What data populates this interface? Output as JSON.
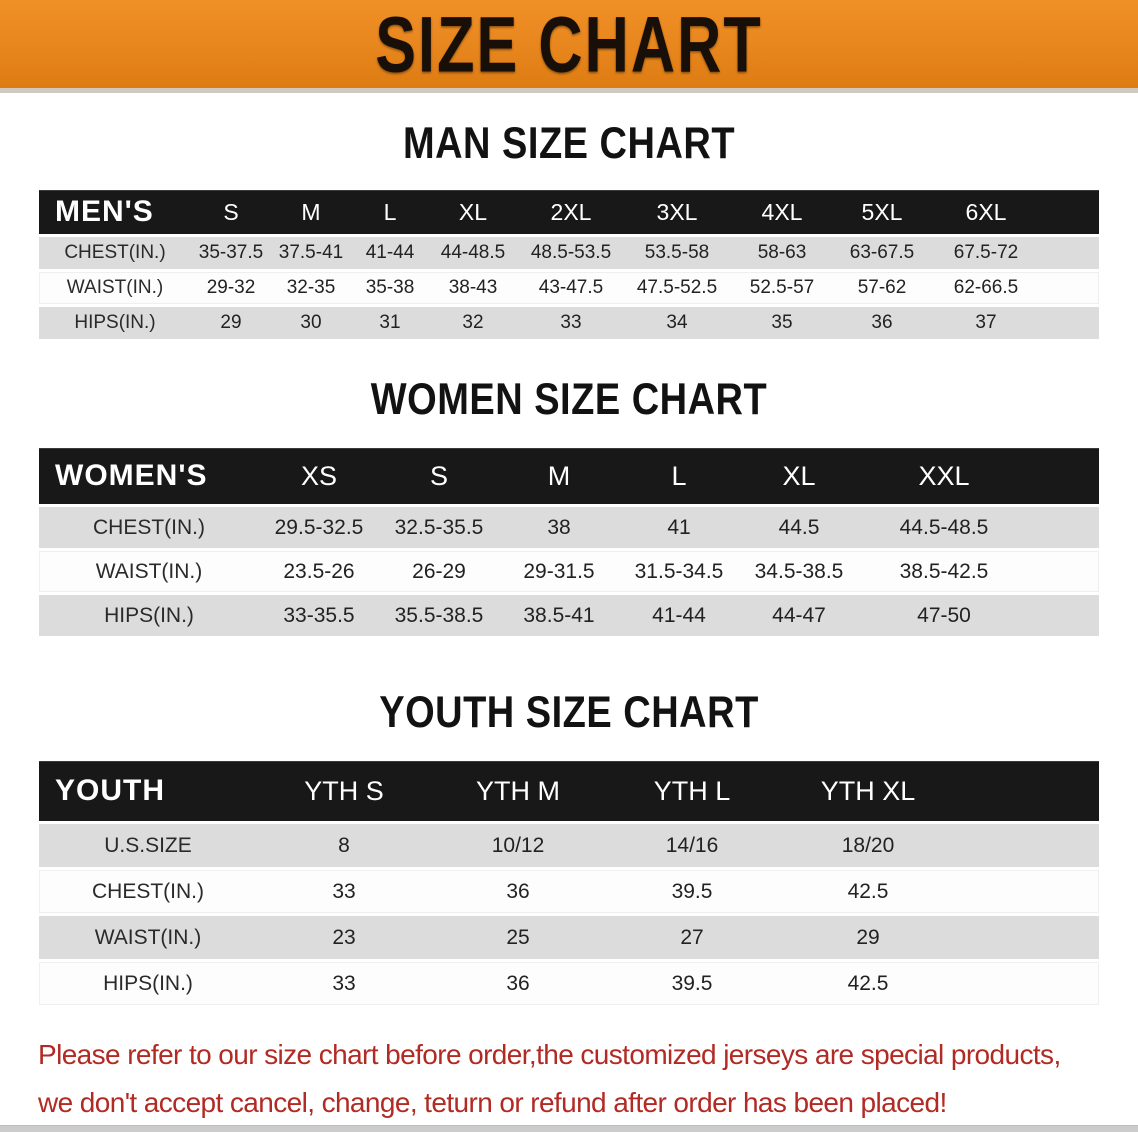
{
  "banner": {
    "title": "SIZE CHART",
    "bg_color": "#e8861e",
    "text_color": "#181008"
  },
  "sections": [
    {
      "heading": "MAN SIZE CHART",
      "table": {
        "label": "MEN'S",
        "sizes": [
          "S",
          "M",
          "L",
          "XL",
          "2XL",
          "3XL",
          "4XL",
          "5XL",
          "6XL"
        ],
        "rows": [
          {
            "label": "CHEST(IN.)",
            "values": [
              "35-37.5",
              "37.5-41",
              "41-44",
              "44-48.5",
              "48.5-53.5",
              "53.5-58",
              "58-63",
              "63-67.5",
              "67.5-72"
            ]
          },
          {
            "label": "WAIST(IN.)",
            "values": [
              "29-32",
              "32-35",
              "35-38",
              "38-43",
              "43-47.5",
              "47.5-52.5",
              "52.5-57",
              "57-62",
              "62-66.5"
            ]
          },
          {
            "label": "HIPS(IN.)",
            "values": [
              "29",
              "30",
              "31",
              "32",
              "33",
              "34",
              "35",
              "36",
              "37"
            ]
          }
        ]
      }
    },
    {
      "heading": "WOMEN SIZE CHART",
      "table": {
        "label": "WOMEN'S",
        "sizes": [
          "XS",
          "S",
          "M",
          "L",
          "XL",
          "XXL"
        ],
        "rows": [
          {
            "label": "CHEST(IN.)",
            "values": [
              "29.5-32.5",
              "32.5-35.5",
              "38",
              "41",
              "44.5",
              "44.5-48.5"
            ]
          },
          {
            "label": "WAIST(IN.)",
            "values": [
              "23.5-26",
              "26-29",
              "29-31.5",
              "31.5-34.5",
              "34.5-38.5",
              "38.5-42.5"
            ]
          },
          {
            "label": "HIPS(IN.)",
            "values": [
              "33-35.5",
              "35.5-38.5",
              "38.5-41",
              "41-44",
              "44-47",
              "47-50"
            ]
          }
        ]
      }
    },
    {
      "heading": "YOUTH SIZE CHART",
      "table": {
        "label": "YOUTH",
        "sizes": [
          "YTH S",
          "YTH M",
          "YTH L",
          "YTH XL"
        ],
        "rows": [
          {
            "label": "U.S.SIZE",
            "values": [
              "8",
              "10/12",
              "14/16",
              "18/20"
            ]
          },
          {
            "label": "CHEST(IN.)",
            "values": [
              "33",
              "36",
              "39.5",
              "42.5"
            ]
          },
          {
            "label": "WAIST(IN.)",
            "values": [
              "23",
              "25",
              "27",
              "29"
            ]
          },
          {
            "label": "HIPS(IN.)",
            "values": [
              "33",
              "36",
              "39.5",
              "42.5"
            ]
          }
        ]
      }
    }
  ],
  "notice": {
    "line1": "Please refer to our size chart before order,the customized jerseys are special products,",
    "line2": "we don't accept cancel, change, teturn or refund after order has been placed!",
    "text_color": "#b22a24"
  }
}
